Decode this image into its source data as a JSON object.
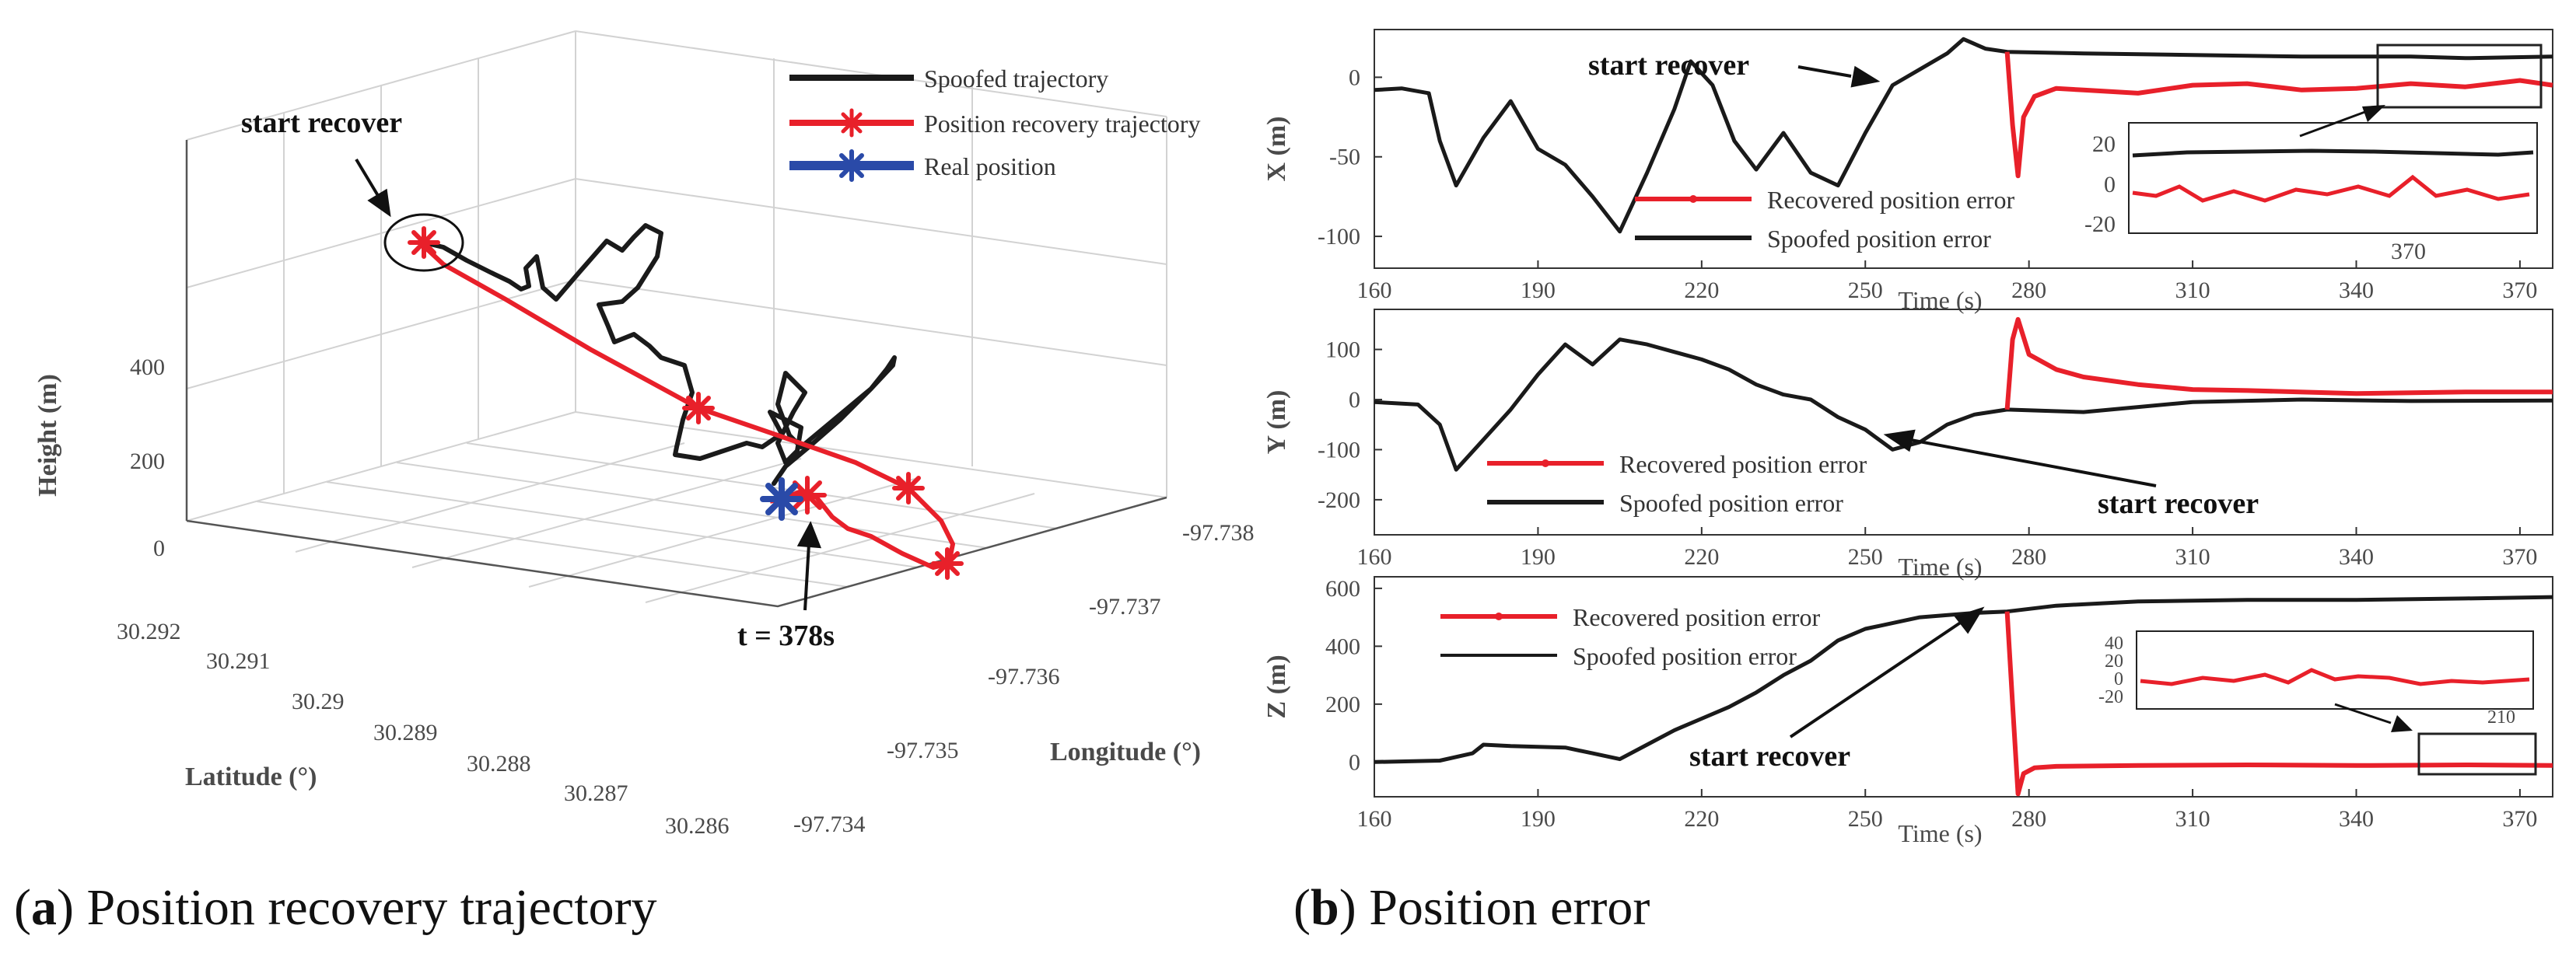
{
  "chart_data": [
    {
      "id": "a",
      "type": "line3d",
      "caption_letter": "a",
      "caption": "Position recovery trajectory",
      "xlabel": "Latitude (°)",
      "ylabel": "Longitude (°)",
      "zlabel": "Height (m)",
      "lat_ticks": [
        "30.292",
        "30.291",
        "30.29",
        "30.289",
        "30.288",
        "30.287",
        "30.286"
      ],
      "lon_ticks": [
        "-97.738",
        "-97.737",
        "-97.736",
        "-97.735",
        "-97.734"
      ],
      "height_ticks": [
        "400",
        "200",
        "0"
      ],
      "legend": [
        "Spoofed trajectory",
        "Position recovery trajectory",
        "Real position"
      ],
      "annotations": [
        "start recover",
        "t = 378s"
      ],
      "colors": {
        "spoofed": "#1a1a1a",
        "recovery": "#e8202a",
        "real": "#2a4aa8"
      }
    },
    {
      "id": "b",
      "type": "line",
      "caption_letter": "b",
      "caption": "Position error",
      "xlabel": "Time (s)",
      "x_ticks": [
        "160",
        "190",
        "220",
        "250",
        "280",
        "310",
        "340",
        "370"
      ],
      "xlim": [
        160,
        376
      ],
      "annotation": "start recover",
      "panels": [
        {
          "ylabel": "X (m)",
          "ylim": [
            -120,
            30
          ],
          "y_ticks": [
            "0",
            "-50",
            "-100"
          ],
          "legend": [
            "Recovered position error",
            "Spoofed position error"
          ],
          "inset": {
            "y_ticks": [
              "20",
              "0",
              "-20"
            ],
            "x_tick": "370"
          },
          "series": [
            {
              "name": "Spoofed position error",
              "color": "#1a1a1a",
              "x": [
                160,
                165,
                170,
                172,
                175,
                180,
                185,
                190,
                195,
                200,
                205,
                210,
                215,
                218,
                222,
                226,
                230,
                235,
                240,
                245,
                250,
                255,
                260,
                265,
                268,
                272,
                276,
                290,
                310,
                330,
                350,
                360,
                376
              ],
              "y": [
                -8,
                -7,
                -10,
                -40,
                -68,
                -38,
                -15,
                -45,
                -55,
                -75,
                -97,
                -60,
                -20,
                10,
                -5,
                -40,
                -58,
                -35,
                -60,
                -68,
                -35,
                -5,
                5,
                15,
                24,
                18,
                16,
                15,
                14,
                13,
                13,
                12,
                13
              ]
            },
            {
              "name": "Recovered position error",
              "color": "#e8202a",
              "x": [
                276,
                277,
                278,
                279,
                281,
                285,
                290,
                300,
                310,
                320,
                330,
                340,
                350,
                360,
                370,
                376
              ],
              "y": [
                16,
                -30,
                -62,
                -25,
                -12,
                -7,
                -8,
                -10,
                -5,
                -4,
                -8,
                -7,
                -4,
                -6,
                -2,
                -5
              ]
            }
          ]
        },
        {
          "ylabel": "Y (m)",
          "ylim": [
            -270,
            180
          ],
          "y_ticks": [
            "100",
            "0",
            "-100",
            "-200"
          ],
          "legend": [
            "Recovered position error",
            "Spoofed position error"
          ],
          "series": [
            {
              "name": "Spoofed position error",
              "color": "#1a1a1a",
              "x": [
                160,
                168,
                172,
                175,
                180,
                185,
                190,
                195,
                200,
                205,
                210,
                215,
                220,
                225,
                230,
                235,
                240,
                245,
                250,
                255,
                260,
                265,
                270,
                276,
                290,
                310,
                330,
                350,
                376
              ],
              "y": [
                -5,
                -10,
                -50,
                -140,
                -80,
                -20,
                50,
                110,
                70,
                120,
                110,
                95,
                80,
                60,
                30,
                10,
                0,
                -35,
                -60,
                -100,
                -85,
                -50,
                -30,
                -20,
                -25,
                -5,
                0,
                -3,
                -2
              ]
            },
            {
              "name": "Recovered position error",
              "color": "#e8202a",
              "x": [
                276,
                277,
                278,
                280,
                285,
                290,
                300,
                310,
                320,
                340,
                360,
                376
              ],
              "y": [
                -20,
                120,
                160,
                90,
                60,
                45,
                30,
                20,
                18,
                12,
                15,
                15
              ]
            }
          ]
        },
        {
          "ylabel": "Z (m)",
          "ylim": [
            -120,
            640
          ],
          "y_ticks": [
            "600",
            "400",
            "200",
            "0"
          ],
          "legend": [
            "Recovered position error",
            "Spoofed position error"
          ],
          "inset": {
            "y_ticks": [
              "40",
              "20",
              "0",
              "-20"
            ],
            "x_tick": "210"
          },
          "series": [
            {
              "name": "Spoofed position error",
              "color": "#1a1a1a",
              "x": [
                160,
                172,
                178,
                180,
                185,
                195,
                200,
                205,
                210,
                215,
                220,
                225,
                230,
                235,
                240,
                245,
                250,
                255,
                260,
                270,
                276,
                285,
                300,
                320,
                340,
                360,
                376
              ],
              "y": [
                0,
                5,
                30,
                60,
                55,
                50,
                30,
                10,
                60,
                110,
                150,
                190,
                240,
                300,
                350,
                420,
                460,
                480,
                500,
                515,
                520,
                540,
                555,
                560,
                560,
                565,
                570
              ]
            },
            {
              "name": "Recovered position error",
              "color": "#e8202a",
              "x": [
                276,
                277,
                278,
                279,
                281,
                285,
                300,
                320,
                340,
                360,
                376
              ],
              "y": [
                520,
                200,
                -110,
                -40,
                -20,
                -15,
                -12,
                -10,
                -12,
                -10,
                -12
              ]
            }
          ]
        }
      ]
    }
  ]
}
